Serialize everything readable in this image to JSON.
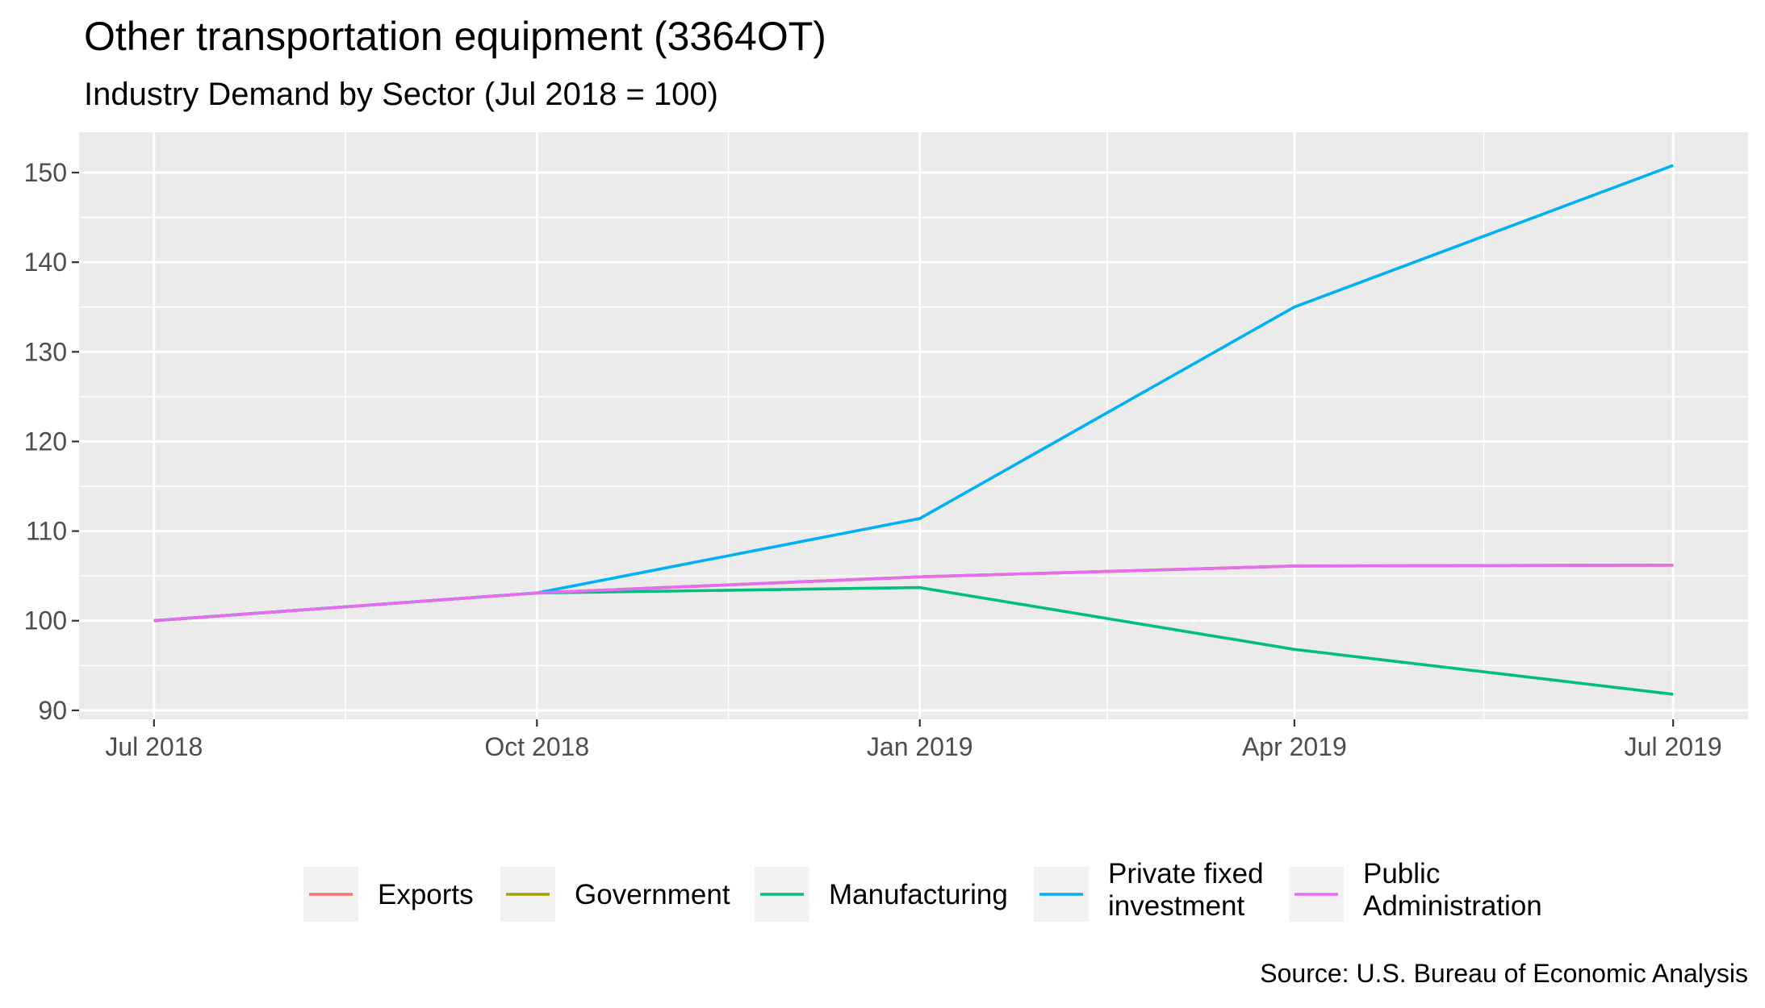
{
  "chart_data": {
    "type": "line",
    "title": "Other transportation equipment (3364OT)",
    "subtitle": "Industry Demand by Sector (Jul 2018 = 100)",
    "caption": "Source: U.S. Bureau of Economic Analysis",
    "xlabel": "",
    "ylabel": "",
    "x": [
      "2018-07-01",
      "2018-10-01",
      "2019-01-01",
      "2019-04-01",
      "2019-07-01"
    ],
    "x_ticks": [
      {
        "date": "2018-07-01",
        "label": "Jul 2018"
      },
      {
        "date": "2018-10-01",
        "label": "Oct 2018"
      },
      {
        "date": "2019-01-01",
        "label": "Jan 2019"
      },
      {
        "date": "2019-04-01",
        "label": "Apr 2019"
      },
      {
        "date": "2019-07-01",
        "label": "Jul 2019"
      }
    ],
    "y_ticks": [
      90,
      100,
      110,
      120,
      130,
      140,
      150
    ],
    "ylim": [
      89.0,
      154.5
    ],
    "xlim": [
      "2018-06-13",
      "2019-07-19"
    ],
    "grid": true,
    "legend_position": "bottom",
    "series": [
      {
        "name": "Exports",
        "color": "#F8766D",
        "values": [
          100.0,
          103.1,
          104.9,
          106.1,
          106.2
        ]
      },
      {
        "name": "Government",
        "color": "#A3A500",
        "values": [
          100.0,
          103.1,
          104.9,
          106.1,
          106.2
        ]
      },
      {
        "name": "Manufacturing",
        "color": "#00BF7D",
        "values": [
          100.0,
          103.1,
          103.7,
          96.8,
          91.8
        ]
      },
      {
        "name": "Private fixed investment",
        "color": "#00B0F6",
        "values": [
          100.0,
          103.1,
          111.4,
          135.0,
          150.8
        ]
      },
      {
        "name": "Public Administration",
        "color": "#E76BF3",
        "values": [
          100.0,
          103.1,
          104.9,
          106.1,
          106.2
        ]
      }
    ],
    "legend": [
      {
        "lines": [
          "Exports"
        ],
        "color": "#F8766D"
      },
      {
        "lines": [
          "Government"
        ],
        "color": "#A3A500"
      },
      {
        "lines": [
          "Manufacturing"
        ],
        "color": "#00BF7D"
      },
      {
        "lines": [
          "Private fixed",
          "investment"
        ],
        "color": "#00B0F6"
      },
      {
        "lines": [
          "Public",
          "Administration"
        ],
        "color": "#E76BF3"
      }
    ]
  }
}
